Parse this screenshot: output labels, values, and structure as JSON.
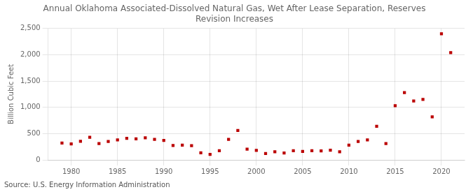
{
  "chart_data": {
    "type": "scatter",
    "title": "Annual Oklahoma Associated-Dissolved Natural Gas, Wet After Lease Separation, Reserves\nRevision Increases",
    "ylabel": "Billion Cubic Feet",
    "annotations": [
      "Source: U.S. Energy Information Administration"
    ],
    "color": "#bb0000",
    "marker": "square",
    "grid": true,
    "xlim": [
      1977.5,
      2022.5
    ],
    "xticks": [
      1980,
      1985,
      1990,
      1995,
      2000,
      2005,
      2010,
      2015,
      2020
    ],
    "ylim": [
      0,
      2500
    ],
    "yticks": [
      0,
      500,
      {
        "value": 1000,
        "label": "1,000"
      },
      {
        "value": 1500,
        "label": "1,500"
      },
      {
        "value": 2000,
        "label": "2,000"
      },
      {
        "value": 2500,
        "label": "2,500"
      }
    ],
    "x": [
      1979,
      1980,
      1981,
      1982,
      1983,
      1984,
      1985,
      1986,
      1987,
      1988,
      1989,
      1990,
      1991,
      1992,
      1993,
      1994,
      1995,
      1996,
      1997,
      1998,
      1999,
      2000,
      2001,
      2002,
      2003,
      2004,
      2005,
      2006,
      2007,
      2008,
      2009,
      2010,
      2011,
      2012,
      2013,
      2014,
      2015,
      2016,
      2017,
      2018,
      2019,
      2020,
      2021
    ],
    "values": [
      320,
      305,
      355,
      430,
      310,
      350,
      380,
      410,
      400,
      420,
      390,
      370,
      275,
      280,
      270,
      135,
      105,
      175,
      390,
      560,
      205,
      180,
      120,
      155,
      130,
      175,
      160,
      175,
      170,
      185,
      155,
      280,
      350,
      380,
      640,
      310,
      1030,
      1280,
      1120,
      1150,
      820,
      2400,
      2040
    ]
  }
}
